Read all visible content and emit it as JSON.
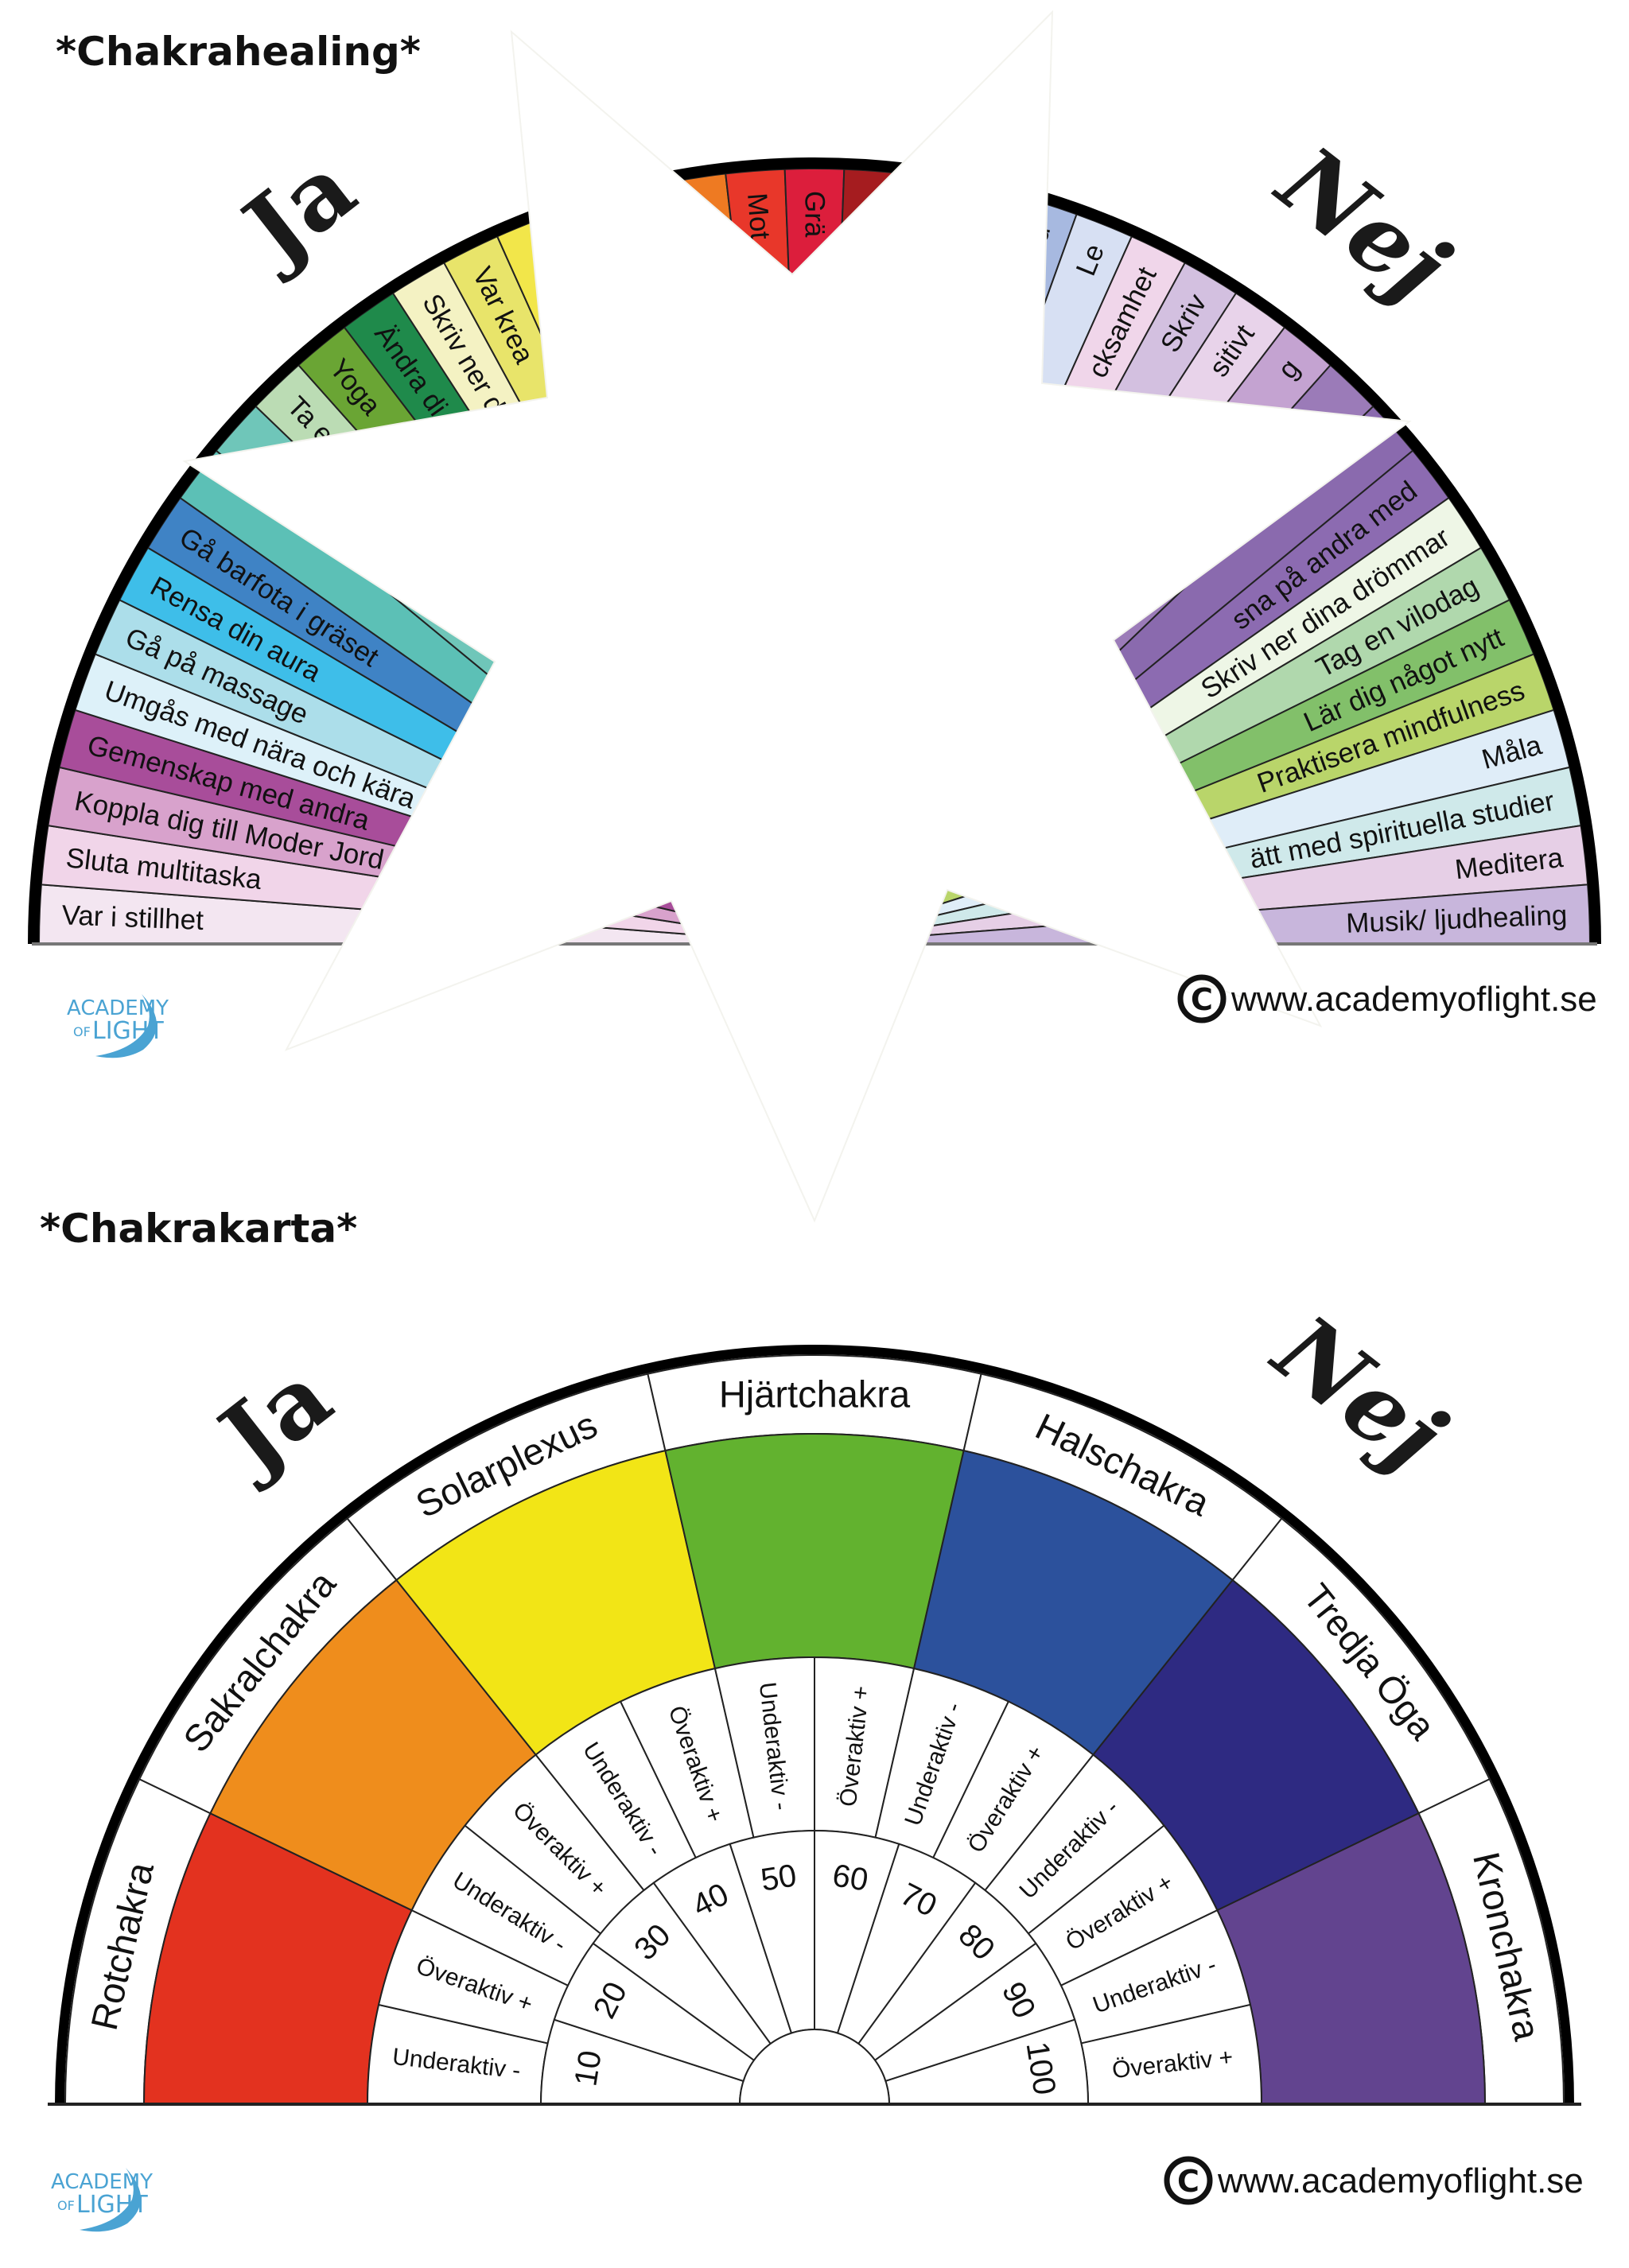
{
  "top_chart": {
    "title": "*Chakrahealing*",
    "ja": "Ja",
    "nej": "Nej",
    "segments": [
      {
        "label": "Var i stillhet",
        "color": "#f3e6f1"
      },
      {
        "label": "Sluta multitaska",
        "color": "#f1d5e9"
      },
      {
        "label": "Koppla dig till Moder Jord",
        "color": "#d8a2cc"
      },
      {
        "label": "Gemenskap med andra",
        "color": "#a84d9a"
      },
      {
        "label": "Umgås med nära och kära",
        "color": "#ddf1f9"
      },
      {
        "label": "Gå på massage",
        "color": "#acdeea"
      },
      {
        "label": "Rensa din aura",
        "color": "#3ebee9"
      },
      {
        "label": "Gå barfota i gräset",
        "color": "#3f83c5"
      },
      {
        "label": "",
        "color": "#5cc0b6"
      },
      {
        "label": "",
        "color": "#6fc6b9"
      },
      {
        "label": "Ta e",
        "color": "#bbdcb4"
      },
      {
        "label": "Yoga",
        "color": "#6aa534"
      },
      {
        "label": "Ändra di",
        "color": "#1f8a4b"
      },
      {
        "label": "Skriv ner d",
        "color": "#f4f2c3"
      },
      {
        "label": "Var krea",
        "color": "#e8e46a"
      },
      {
        "label": "",
        "color": "#f2e64a"
      },
      {
        "label": "",
        "color": "#f6d330"
      },
      {
        "label": "",
        "color": "#f5a623"
      },
      {
        "label": "",
        "color": "#ee7a22"
      },
      {
        "label": "Mot",
        "color": "#e8372a"
      },
      {
        "label": "Grä",
        "color": "#dc1e3c"
      },
      {
        "label": "",
        "color": "#a51c1f"
      },
      {
        "label": "",
        "color": "#5d7fc3"
      },
      {
        "label": "",
        "color": "#7d9ad0"
      },
      {
        "label": "glad",
        "color": "#a7b9e0"
      },
      {
        "label": "Le",
        "color": "#d7e0f3"
      },
      {
        "label": "cksamhet",
        "color": "#f0d6ea"
      },
      {
        "label": "Skriv",
        "color": "#d3c0e0"
      },
      {
        "label": "sitivt",
        "color": "#e8d3ea"
      },
      {
        "label": "g",
        "color": "#c4a3d1"
      },
      {
        "label": "",
        "color": "#9b7bb8"
      },
      {
        "label": "",
        "color": "#8a6aae"
      },
      {
        "label": "sna på andra med",
        "color": "#8c6bb1"
      },
      {
        "label": "Skriv ner dina drömmar",
        "color": "#eef6e6"
      },
      {
        "label": "Tag en vilodag",
        "color": "#b0d8ad"
      },
      {
        "label": "Lär dig något nytt",
        "color": "#82c06a"
      },
      {
        "label": "Praktisera mindfulness",
        "color": "#b9d56a"
      },
      {
        "label": "Måla",
        "color": "#dfedf8"
      },
      {
        "label": "ätt med spirituella studier",
        "color": "#cfe9ea"
      },
      {
        "label": "Meditera",
        "color": "#e6cfe6"
      },
      {
        "label": "Musik/ ljudhealing",
        "color": "#c8b6dc"
      }
    ]
  },
  "bottom_chart": {
    "title": "*Chakrakarta*",
    "ja": "Ja",
    "nej": "Nej",
    "chakras": [
      {
        "name": "Rotchakra",
        "color": "#e3321f"
      },
      {
        "name": "Sakralchakra",
        "color": "#ef8d1c"
      },
      {
        "name": "Solarplexus",
        "color": "#f2e516"
      },
      {
        "name": "Hjärtchakra",
        "color": "#62b22f"
      },
      {
        "name": "Halschakra",
        "color": "#2c519c"
      },
      {
        "name": "Tredja Öga",
        "color": "#2e2a82"
      },
      {
        "name": "Kronchakra",
        "color": "#62448f"
      }
    ],
    "sub_labels": [
      "Underaktiv -",
      "Överaktiv +",
      "Underaktiv -",
      "Överaktiv +",
      "Underaktiv -",
      "Överaktiv +",
      "Underaktiv -",
      "Överaktiv +",
      "Underaktiv -",
      "Överaktiv +",
      "Underaktiv -",
      "Överaktiv +",
      "Underaktiv -",
      "Överaktiv +"
    ],
    "numbers": [
      "10",
      "20",
      "30",
      "40",
      "50",
      "60",
      "70",
      "80",
      "90",
      "100"
    ]
  },
  "logo": {
    "line1": "ACADEMY",
    "line2_small": "OF",
    "line2": "LIGHT",
    "color": "#4aa3d3"
  },
  "copyright": {
    "icon": "copyright-icon",
    "url": "www.academyoflight.se"
  }
}
